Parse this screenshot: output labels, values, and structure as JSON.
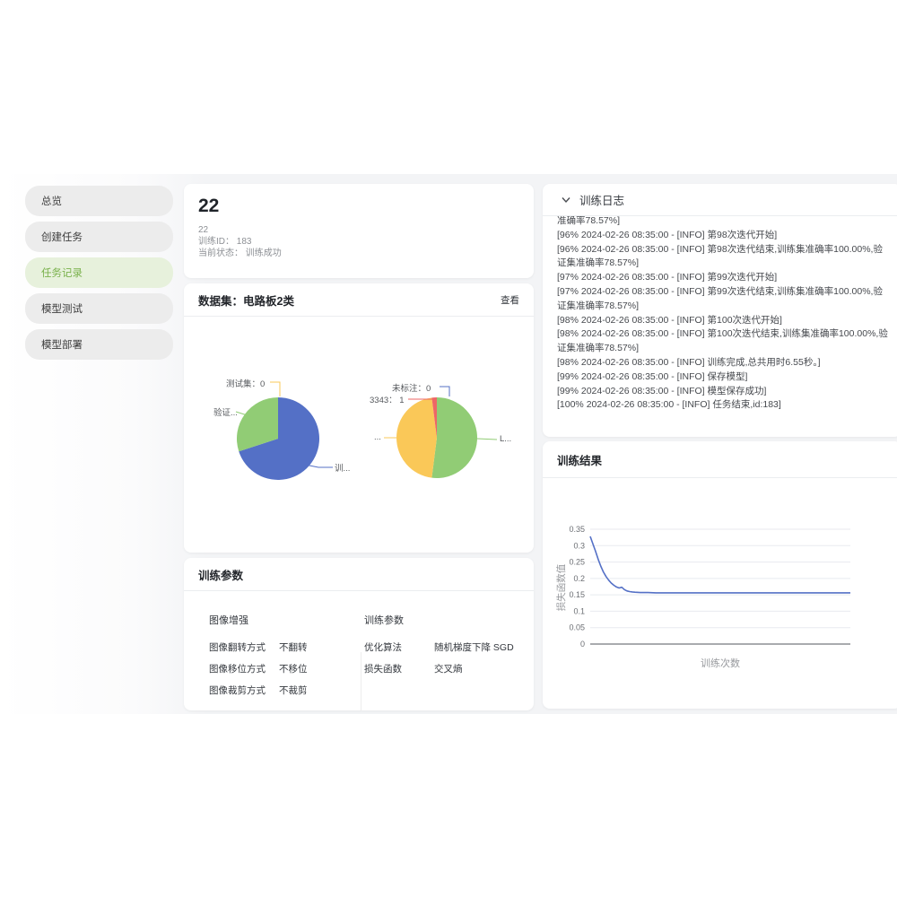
{
  "sidebar": {
    "items": [
      {
        "label": "总览",
        "active": false
      },
      {
        "label": "创建任务",
        "active": false
      },
      {
        "label": "任务记录",
        "active": true
      },
      {
        "label": "模型测试",
        "active": false
      },
      {
        "label": "模型部署",
        "active": false
      }
    ]
  },
  "task": {
    "title": "22",
    "meta": [
      "22",
      "训练ID： 183",
      "当前状态： 训练成功"
    ]
  },
  "dataset": {
    "title": "数据集：电路板2类",
    "view_label": "查看"
  },
  "params": {
    "title": "训练参数",
    "groups": [
      {
        "title": "图像增强",
        "rows": [
          [
            "图像翻转方式",
            "不翻转"
          ],
          [
            "图像移位方式",
            "不移位"
          ],
          [
            "图像裁剪方式",
            "不裁剪"
          ]
        ]
      },
      {
        "title": "训练参数",
        "rows": [
          [
            "优化算法",
            "随机梯度下降 SGD"
          ],
          [
            "损失函数",
            "交叉熵"
          ]
        ]
      }
    ]
  },
  "log": {
    "title": "训练日志",
    "lines": [
      "准确率78.57%]",
      "[96% 2024-02-26 08:35:00 - [INFO] 第98次迭代开始]",
      "[96% 2024-02-26 08:35:00 - [INFO] 第98次迭代结束,训练集准确率100.00%,验证集准确率78.57%]",
      "[97% 2024-02-26 08:35:00 - [INFO] 第99次迭代开始]",
      "[97% 2024-02-26 08:35:00 - [INFO] 第99次迭代结束,训练集准确率100.00%,验证集准确率78.57%]",
      "[98% 2024-02-26 08:35:00 - [INFO] 第100次迭代开始]",
      "[98% 2024-02-26 08:35:00 - [INFO] 第100次迭代结束,训练集准确率100.00%,验证集准确率78.57%]",
      "[98% 2024-02-26 08:35:00 - [INFO] 训练完成,总共用时6.55秒。]",
      "[99% 2024-02-26 08:35:00 - [INFO] 保存模型]",
      "[99% 2024-02-26 08:35:00 - [INFO] 模型保存成功]",
      "[100% 2024-02-26 08:35:00 - [INFO] 任务结束,id:183]"
    ]
  },
  "results": {
    "title": "训练结果"
  },
  "chart_data": [
    {
      "type": "pie",
      "name": "dataset-split-pie",
      "slices": [
        {
          "label": "训...",
          "value": 70,
          "color": "#5470c6"
        },
        {
          "label": "验证...",
          "value": 30,
          "color": "#91cc75"
        },
        {
          "label": "测试集：0",
          "value": 0,
          "color": "#fac858"
        }
      ]
    },
    {
      "type": "pie",
      "name": "dataset-class-pie",
      "slices": [
        {
          "label": "L...",
          "value": 52,
          "color": "#91cc75"
        },
        {
          "label": "...",
          "value": 46,
          "color": "#fac858"
        },
        {
          "label": "3343： 1",
          "value": 2,
          "color": "#ee6666"
        },
        {
          "label": "未标注：0",
          "value": 0,
          "color": "#5470c6"
        }
      ]
    },
    {
      "type": "line",
      "name": "loss-curve",
      "title": "",
      "xlabel": "训练次数",
      "ylabel": "损失函数值",
      "ylim": [
        0,
        0.35
      ],
      "yticks": [
        0,
        0.05,
        0.1,
        0.15,
        0.2,
        0.25,
        0.3,
        0.35
      ],
      "xlim": [
        1,
        100
      ],
      "line_color": "#5470c6",
      "points": [
        [
          1,
          0.328
        ],
        [
          2,
          0.306
        ],
        [
          3,
          0.283
        ],
        [
          4,
          0.259
        ],
        [
          5,
          0.238
        ],
        [
          6,
          0.22
        ],
        [
          7,
          0.206
        ],
        [
          8,
          0.195
        ],
        [
          9,
          0.186
        ],
        [
          10,
          0.179
        ],
        [
          11,
          0.174
        ],
        [
          12,
          0.171
        ],
        [
          13,
          0.173
        ],
        [
          14,
          0.166
        ],
        [
          15,
          0.162
        ],
        [
          16,
          0.16
        ],
        [
          17,
          0.159
        ],
        [
          18,
          0.158
        ],
        [
          20,
          0.157
        ],
        [
          23,
          0.157
        ],
        [
          26,
          0.156
        ],
        [
          30,
          0.156
        ],
        [
          35,
          0.156
        ],
        [
          40,
          0.156
        ],
        [
          50,
          0.156
        ],
        [
          60,
          0.156
        ],
        [
          70,
          0.156
        ],
        [
          80,
          0.156
        ],
        [
          90,
          0.156
        ],
        [
          100,
          0.156
        ]
      ]
    }
  ]
}
